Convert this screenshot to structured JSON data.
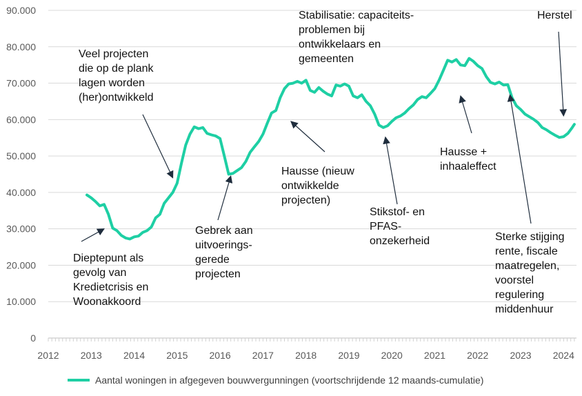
{
  "chart_data": {
    "type": "line",
    "title": "",
    "xlabel": "",
    "ylabel": "",
    "xlim": [
      2012,
      2024.3
    ],
    "ylim": [
      0,
      90000
    ],
    "x_ticks": [
      "2012",
      "2013",
      "2014",
      "2015",
      "2016",
      "2017",
      "2018",
      "2019",
      "2020",
      "2021",
      "2022",
      "2023",
      "2024"
    ],
    "y_ticks": [
      "0",
      "10.000",
      "20.000",
      "30.000",
      "40.000",
      "50.000",
      "60.000",
      "70.000",
      "80.000",
      "90.000"
    ],
    "legend_position": "bottom",
    "grid": {
      "horizontal": true,
      "vertical": false
    },
    "colors": {
      "series": "#1ecfa4",
      "grid": "#d9d9d9",
      "arrow": "#1f2d3d"
    },
    "series": [
      {
        "name": "Aantal woningen in afgegeven bouwvergunningen (voortschrijdende 12 maands-cumulatie)",
        "x": [
          2012.9,
          2013.0,
          2013.1,
          2013.2,
          2013.3,
          2013.4,
          2013.5,
          2013.6,
          2013.7,
          2013.8,
          2013.9,
          2014.0,
          2014.1,
          2014.2,
          2014.3,
          2014.4,
          2014.5,
          2014.6,
          2014.7,
          2014.8,
          2014.9,
          2015.0,
          2015.1,
          2015.2,
          2015.3,
          2015.4,
          2015.5,
          2015.6,
          2015.7,
          2015.8,
          2015.9,
          2016.0,
          2016.1,
          2016.2,
          2016.3,
          2016.4,
          2016.5,
          2016.6,
          2016.7,
          2016.8,
          2016.9,
          2017.0,
          2017.1,
          2017.2,
          2017.3,
          2017.4,
          2017.5,
          2017.6,
          2017.7,
          2017.8,
          2017.9,
          2018.0,
          2018.1,
          2018.2,
          2018.3,
          2018.4,
          2018.5,
          2018.6,
          2018.7,
          2018.8,
          2018.9,
          2019.0,
          2019.1,
          2019.2,
          2019.3,
          2019.4,
          2019.5,
          2019.6,
          2019.7,
          2019.8,
          2019.9,
          2020.0,
          2020.1,
          2020.2,
          2020.3,
          2020.4,
          2020.5,
          2020.6,
          2020.7,
          2020.8,
          2020.9,
          2021.0,
          2021.1,
          2021.2,
          2021.3,
          2021.4,
          2021.5,
          2021.6,
          2021.7,
          2021.8,
          2021.9,
          2022.0,
          2022.1,
          2022.2,
          2022.3,
          2022.4,
          2022.5,
          2022.6,
          2022.7,
          2022.8,
          2022.9,
          2023.0,
          2023.1,
          2023.2,
          2023.3,
          2023.4,
          2023.5,
          2023.6,
          2023.7,
          2023.8,
          2023.9,
          2024.0,
          2024.1,
          2024.2,
          2024.25
        ],
        "values": [
          39300,
          38500,
          37500,
          36300,
          36700,
          34000,
          30200,
          29500,
          28200,
          27500,
          27200,
          27800,
          28000,
          29000,
          29500,
          30500,
          33000,
          34000,
          37000,
          38500,
          40000,
          42500,
          48000,
          53000,
          56000,
          58000,
          57500,
          57800,
          56200,
          55800,
          55500,
          54800,
          50000,
          45000,
          45200,
          46000,
          46800,
          48500,
          51000,
          52500,
          54000,
          56000,
          59000,
          61800,
          62500,
          66000,
          68500,
          69800,
          70000,
          70500,
          70000,
          70800,
          68000,
          67500,
          68800,
          67800,
          67000,
          66500,
          69500,
          69200,
          69800,
          69200,
          66500,
          66000,
          66800,
          65000,
          63800,
          61500,
          58500,
          57800,
          58300,
          59500,
          60500,
          61000,
          61800,
          63000,
          64000,
          65500,
          66300,
          66000,
          67200,
          68500,
          70800,
          73500,
          76300,
          75800,
          76500,
          75000,
          74800,
          76800,
          76000,
          74800,
          74000,
          71800,
          70200,
          69800,
          70300,
          69500,
          69600,
          66000,
          63800,
          62800,
          61500,
          60800,
          60100,
          59200,
          57800,
          57200,
          56400,
          55700,
          55100,
          55300,
          56200,
          57800,
          58700
        ]
      }
    ],
    "annotations": [
      {
        "lines": [
          "Dieptepunt als",
          "gevolg van",
          "Kredietcrisis en",
          "Woonakkoord"
        ],
        "point": [
          2013.3,
          30000
        ]
      },
      {
        "lines": [
          "Veel projecten",
          "die op de plank",
          "lagen worden",
          "(her)ontwikkeld"
        ],
        "point": [
          2014.9,
          44000
        ]
      },
      {
        "lines": [
          "Gebrek aan",
          "uitvoerings-",
          "gerede",
          "projecten"
        ],
        "point": [
          2016.25,
          44500
        ]
      },
      {
        "lines": [
          "Hausse (nieuw",
          "ontwikkelde",
          "projecten)"
        ],
        "point": [
          2017.65,
          59500
        ]
      },
      {
        "lines": [
          "Stabilisatie: capaciteits-",
          "problemen bij",
          "ontwikkelaars en",
          "gemeenten"
        ],
        "point": null
      },
      {
        "lines": [
          "Stikstof- en",
          "PFAS-",
          "onzekerheid"
        ],
        "point": [
          2019.85,
          55200
        ]
      },
      {
        "lines": [
          "Hausse +",
          "inhaaleffect"
        ],
        "point": [
          2021.6,
          66500
        ]
      },
      {
        "lines": [
          "Sterke stijging",
          "rente, fiscale",
          "maatregelen,",
          "voorstel",
          "regulering",
          "middenhuur"
        ],
        "point": [
          2022.75,
          66800
        ]
      },
      {
        "lines": [
          "Herstel"
        ],
        "point": [
          2024.0,
          61000
        ]
      }
    ]
  }
}
